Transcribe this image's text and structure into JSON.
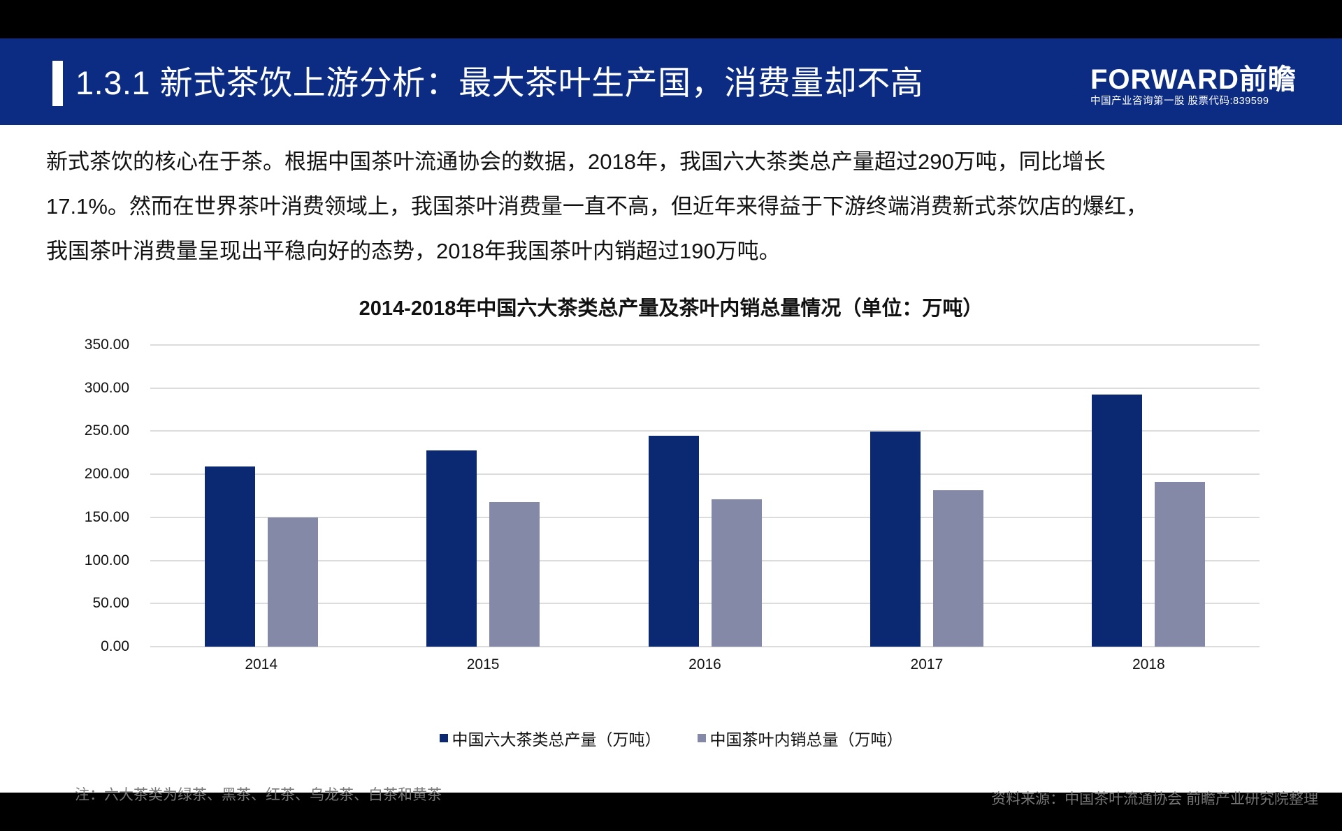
{
  "header": {
    "title": "1.3.1 新式茶饮上游分析：最大茶叶生产国，消费量却不高",
    "logo_main": "FORWARD前瞻",
    "logo_sub": "中国产业咨询第一股  股票代码:839599"
  },
  "intro": {
    "lines": [
      "新式茶饮的核心在于茶。根据中国茶叶流通协会的数据，2018年，我国六大茶类总产量超过290万吨，同比增长",
      "17.1%。然而在世界茶叶消费领域上，我国茶叶消费量一直不高，但近年来得益于下游终端消费新式茶饮店的爆红，",
      "我国茶叶消费量呈现出平稳向好的态势，2018年我国茶叶内销超过190万吨。"
    ]
  },
  "colors": {
    "header_bg": "#0c2c84",
    "series_production": "#0b2872",
    "series_domestic": "#8589a8"
  },
  "chart_data": {
    "type": "bar",
    "title": "2014-2018年中国六大茶类总产量及茶叶内销总量情况（单位：万吨）",
    "xlabel": "",
    "ylabel": "",
    "categories": [
      "2014",
      "2015",
      "2016",
      "2017",
      "2018"
    ],
    "series": [
      {
        "name": "中国六大茶类总产量（万吨）",
        "values": [
          209.0,
          227.8,
          244.5,
          249.6,
          292.3
        ]
      },
      {
        "name": "中国茶叶内销总量（万吨）",
        "values": [
          150.0,
          167.7,
          170.7,
          181.3,
          190.9
        ]
      }
    ],
    "ylim": [
      0,
      350
    ],
    "yticks": [
      "0.00",
      "50.00",
      "100.00",
      "150.00",
      "200.00",
      "250.00",
      "300.00",
      "350.00"
    ],
    "grid": true,
    "legend_position": "bottom"
  },
  "footer": {
    "note": "注：六大茶类为绿茶、黑茶、红茶、乌龙茶、白茶和黄茶",
    "source": "资料来源：中国茶叶流通协会 前瞻产业研究院整理"
  }
}
